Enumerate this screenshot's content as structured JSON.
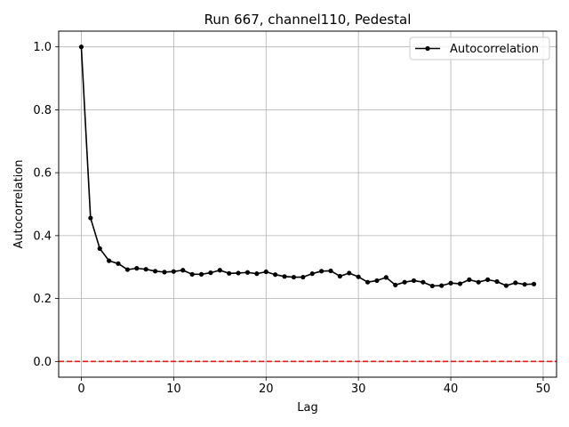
{
  "chart_data": {
    "type": "line",
    "title": "Run 667, channel110, Pedestal",
    "xlabel": "Lag",
    "ylabel": "Autocorrelation",
    "xlim": [
      -2.45,
      51.45
    ],
    "ylim": [
      -0.05,
      1.05
    ],
    "xticks": [
      0,
      10,
      20,
      30,
      40,
      50
    ],
    "yticks": [
      0.0,
      0.2,
      0.4,
      0.6,
      0.8,
      1.0
    ],
    "xtick_labels": [
      "0",
      "10",
      "20",
      "30",
      "40",
      "50"
    ],
    "ytick_labels": [
      "0.0",
      "0.2",
      "0.4",
      "0.6",
      "0.8",
      "1.0"
    ],
    "grid": true,
    "legend_position": "top-right",
    "series": [
      {
        "name": "Autocorrelation",
        "color": "#000000",
        "marker": "circle",
        "x": [
          0,
          1,
          2,
          3,
          4,
          5,
          6,
          7,
          8,
          9,
          10,
          11,
          12,
          13,
          14,
          15,
          16,
          17,
          18,
          19,
          20,
          21,
          22,
          23,
          24,
          25,
          26,
          27,
          28,
          29,
          30,
          31,
          32,
          33,
          34,
          35,
          36,
          37,
          38,
          39,
          40,
          41,
          42,
          43,
          44,
          45,
          46,
          47,
          48,
          49
        ],
        "y": [
          1.0,
          0.456,
          0.359,
          0.32,
          0.311,
          0.292,
          0.296,
          0.293,
          0.287,
          0.284,
          0.286,
          0.29,
          0.277,
          0.277,
          0.282,
          0.29,
          0.28,
          0.281,
          0.283,
          0.279,
          0.285,
          0.276,
          0.27,
          0.268,
          0.268,
          0.279,
          0.287,
          0.288,
          0.271,
          0.281,
          0.269,
          0.252,
          0.257,
          0.267,
          0.243,
          0.252,
          0.257,
          0.252,
          0.24,
          0.241,
          0.249,
          0.247,
          0.26,
          0.252,
          0.26,
          0.254,
          0.241,
          0.25,
          0.245,
          0.246
        ]
      }
    ],
    "reference_line": {
      "y": 0.0,
      "color": "#e41a1c",
      "style": "dashed"
    }
  }
}
